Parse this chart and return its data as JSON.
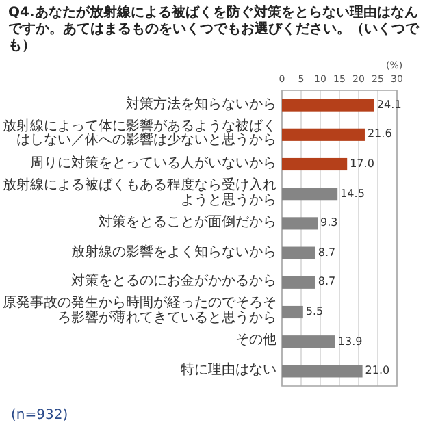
{
  "chart_data": {
    "type": "bar",
    "orientation": "horizontal",
    "title": "Q4.あなたが放射線による被ばくを防ぐ対策をとらない理由はなんですか。あてはまるものをいくつでもお選びください。（いくつでも）",
    "xlabel": "(%)",
    "categories": [
      "対策方法を知らないから",
      "放射線によって体に影響があるような被ばくはしない／体への影響は少ないと思うから",
      "周りに対策をとっている人がいないから",
      "放射線による被ばくもある程度なら受け入れようと思うから",
      "対策をとることが面倒だから",
      "放射線の影響をよく知らないから",
      "対策をとるのにお金がかかるから",
      "原発事故の発生から時間が経ったのでそろそろ影響が薄れてきていると思うから",
      "その他",
      "特に理由はない"
    ],
    "values": [
      24.1,
      21.6,
      17.0,
      14.5,
      9.3,
      8.7,
      8.7,
      5.5,
      13.9,
      21.0
    ],
    "value_labels": [
      "24.1",
      "21.6",
      "17.0",
      "14.5",
      "9.3",
      "8.7",
      "8.7",
      "5.5",
      "13.9",
      "21.0"
    ],
    "colors": [
      "#b5401a",
      "#b5401a",
      "#b5401a",
      "#858585",
      "#858585",
      "#858585",
      "#858585",
      "#858585",
      "#858585",
      "#858585"
    ],
    "xlim": [
      0,
      30
    ],
    "xticks": [
      0,
      5,
      10,
      15,
      20,
      25,
      30
    ],
    "grid": "x",
    "annotations": [
      "(n=932)"
    ]
  }
}
